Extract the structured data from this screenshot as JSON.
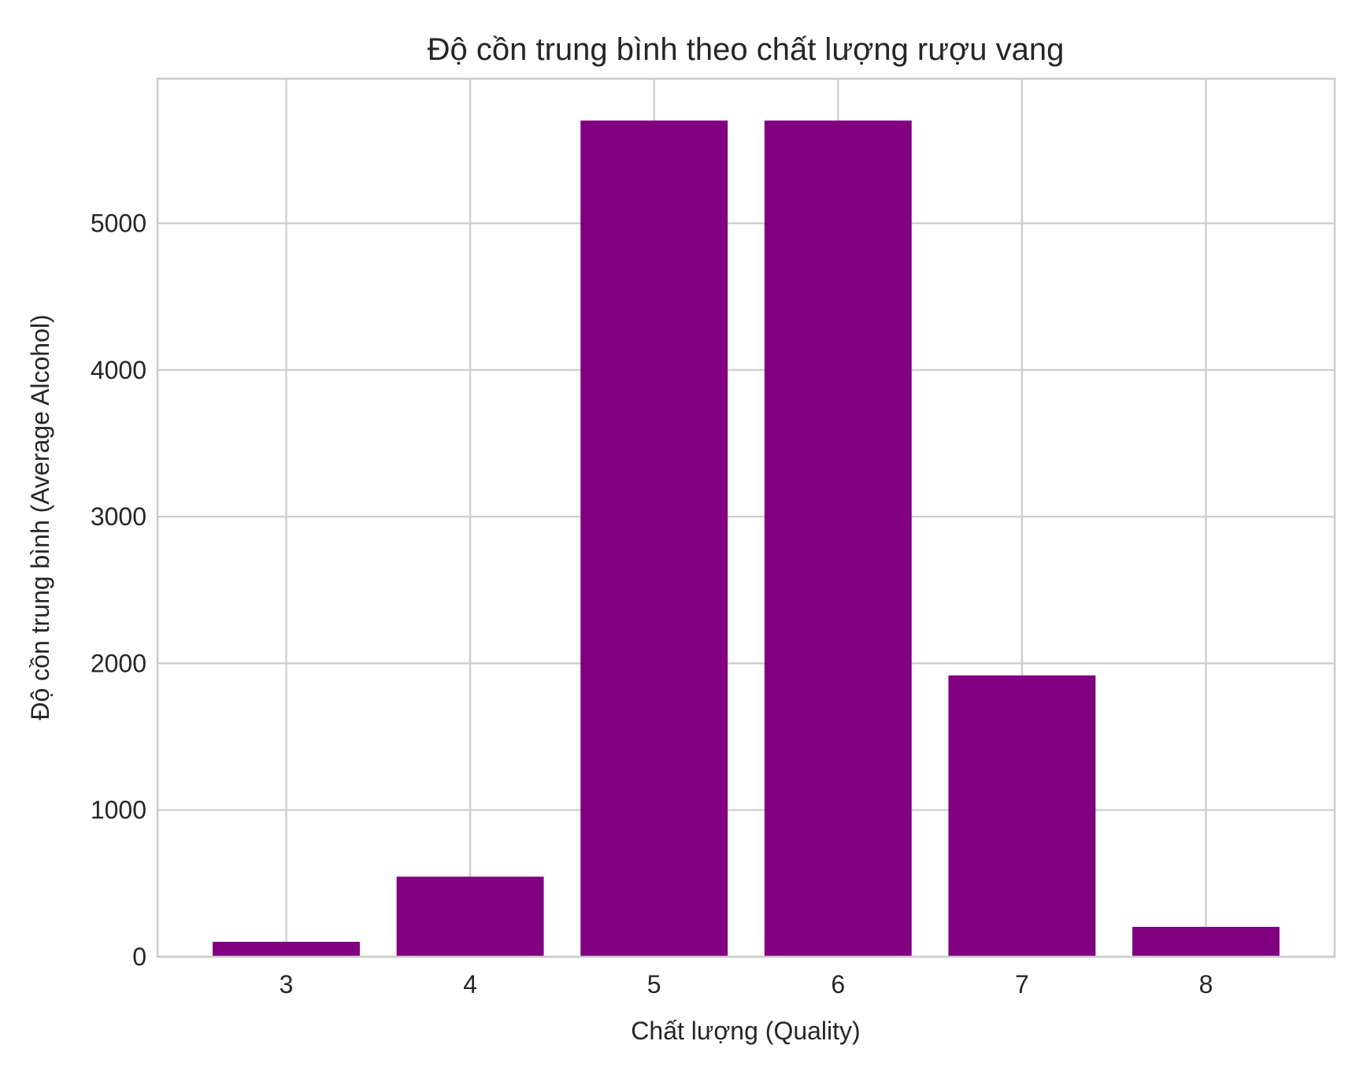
{
  "chart_data": {
    "type": "bar",
    "title": "Độ cồn trung bình theo chất lượng rượu vang",
    "xlabel": "Chất lượng (Quality)",
    "ylabel": "Độ cồn trung bình (Average Alcohol)",
    "categories": [
      "3",
      "4",
      "5",
      "6",
      "7",
      "8"
    ],
    "values": [
      102,
      546,
      5700,
      5700,
      1918,
      204
    ],
    "yticks": [
      "0",
      "1000",
      "2000",
      "3000",
      "4000",
      "5000"
    ],
    "ylim": [
      0,
      5985
    ],
    "grid": true,
    "bar_color": "#800080",
    "grid_color": "#cccccc",
    "text_color": "#262626"
  }
}
